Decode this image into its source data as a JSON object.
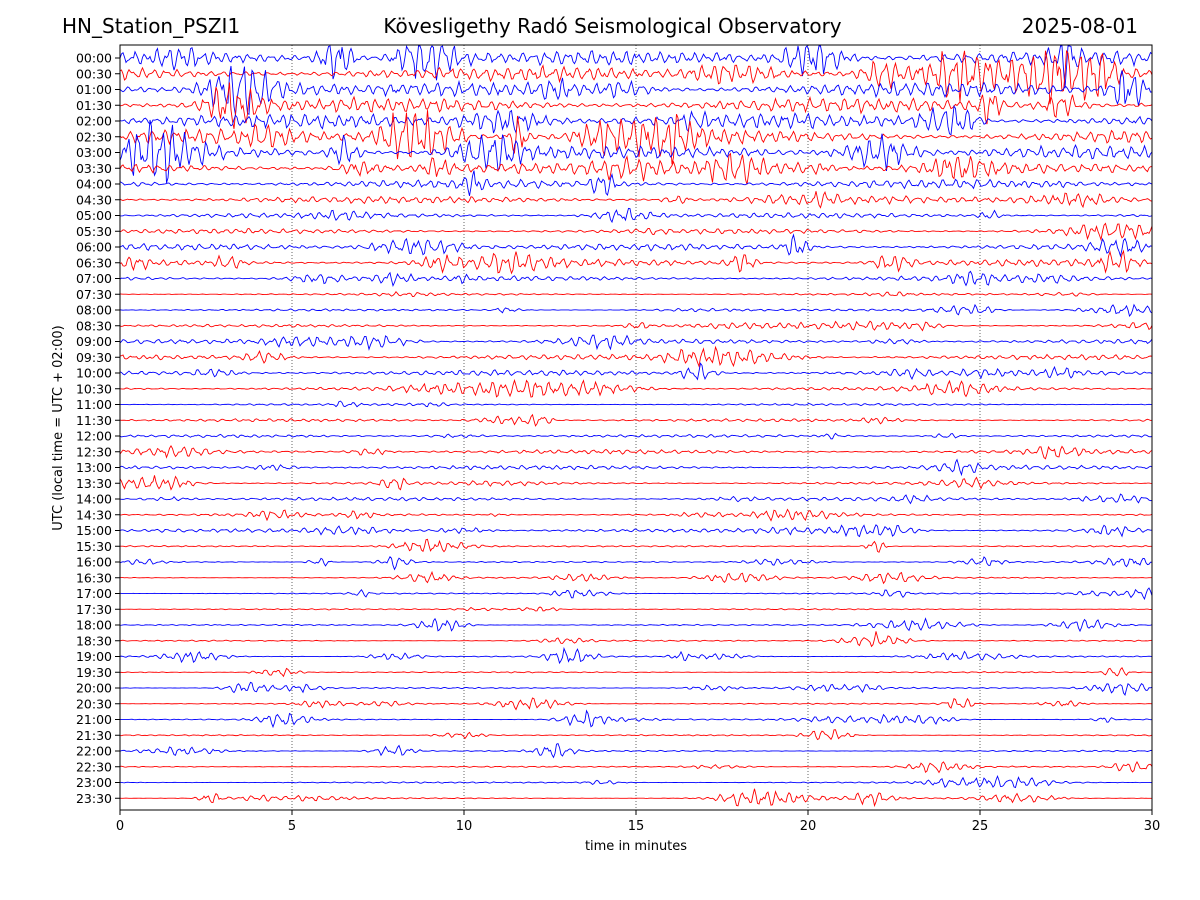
{
  "header": {
    "station": "HN_Station_PSZI1",
    "title": "Kövesligethy Radó Seismological Observatory",
    "date": "2025-08-01"
  },
  "chart_data": {
    "type": "line",
    "title": "Kövesligethy Radó Seismological Observatory",
    "xlabel": "time in minutes",
    "ylabel": "UTC (local time = UTC + 02:00)",
    "xlim": [
      0,
      30
    ],
    "x_ticks": [
      0,
      5,
      10,
      15,
      20,
      25,
      30
    ],
    "grid": "vertical dotted lines at x ticks",
    "series_colors": [
      "#0000ff",
      "#ff0000"
    ],
    "row_labels": [
      "00:00",
      "00:30",
      "01:00",
      "01:30",
      "02:00",
      "02:30",
      "03:00",
      "03:30",
      "04:00",
      "04:30",
      "05:00",
      "05:30",
      "06:00",
      "06:30",
      "07:00",
      "07:30",
      "08:00",
      "08:30",
      "09:00",
      "09:30",
      "10:00",
      "10:30",
      "11:00",
      "11:30",
      "12:00",
      "12:30",
      "13:00",
      "13:30",
      "14:00",
      "14:30",
      "15:00",
      "15:30",
      "16:00",
      "16:30",
      "17:00",
      "17:30",
      "18:00",
      "18:30",
      "19:00",
      "19:30",
      "20:00",
      "20:30",
      "21:00",
      "21:30",
      "22:00",
      "22:30",
      "23:00",
      "23:30"
    ],
    "row_activity": [
      1.0,
      1.0,
      1.0,
      1.0,
      1.0,
      1.0,
      0.9,
      0.7,
      0.6,
      0.5,
      0.35,
      0.35,
      0.45,
      0.5,
      0.35,
      0.15,
      0.15,
      0.2,
      0.3,
      0.35,
      0.4,
      0.3,
      0.15,
      0.2,
      0.2,
      0.3,
      0.3,
      0.2,
      0.25,
      0.2,
      0.25,
      0.1,
      0.05,
      0.04,
      0.05,
      0.03,
      0.06,
      0.05,
      0.07,
      0.08,
      0.08,
      0.07,
      0.09,
      0.08,
      0.1,
      0.07,
      0.1,
      0.09
    ]
  }
}
